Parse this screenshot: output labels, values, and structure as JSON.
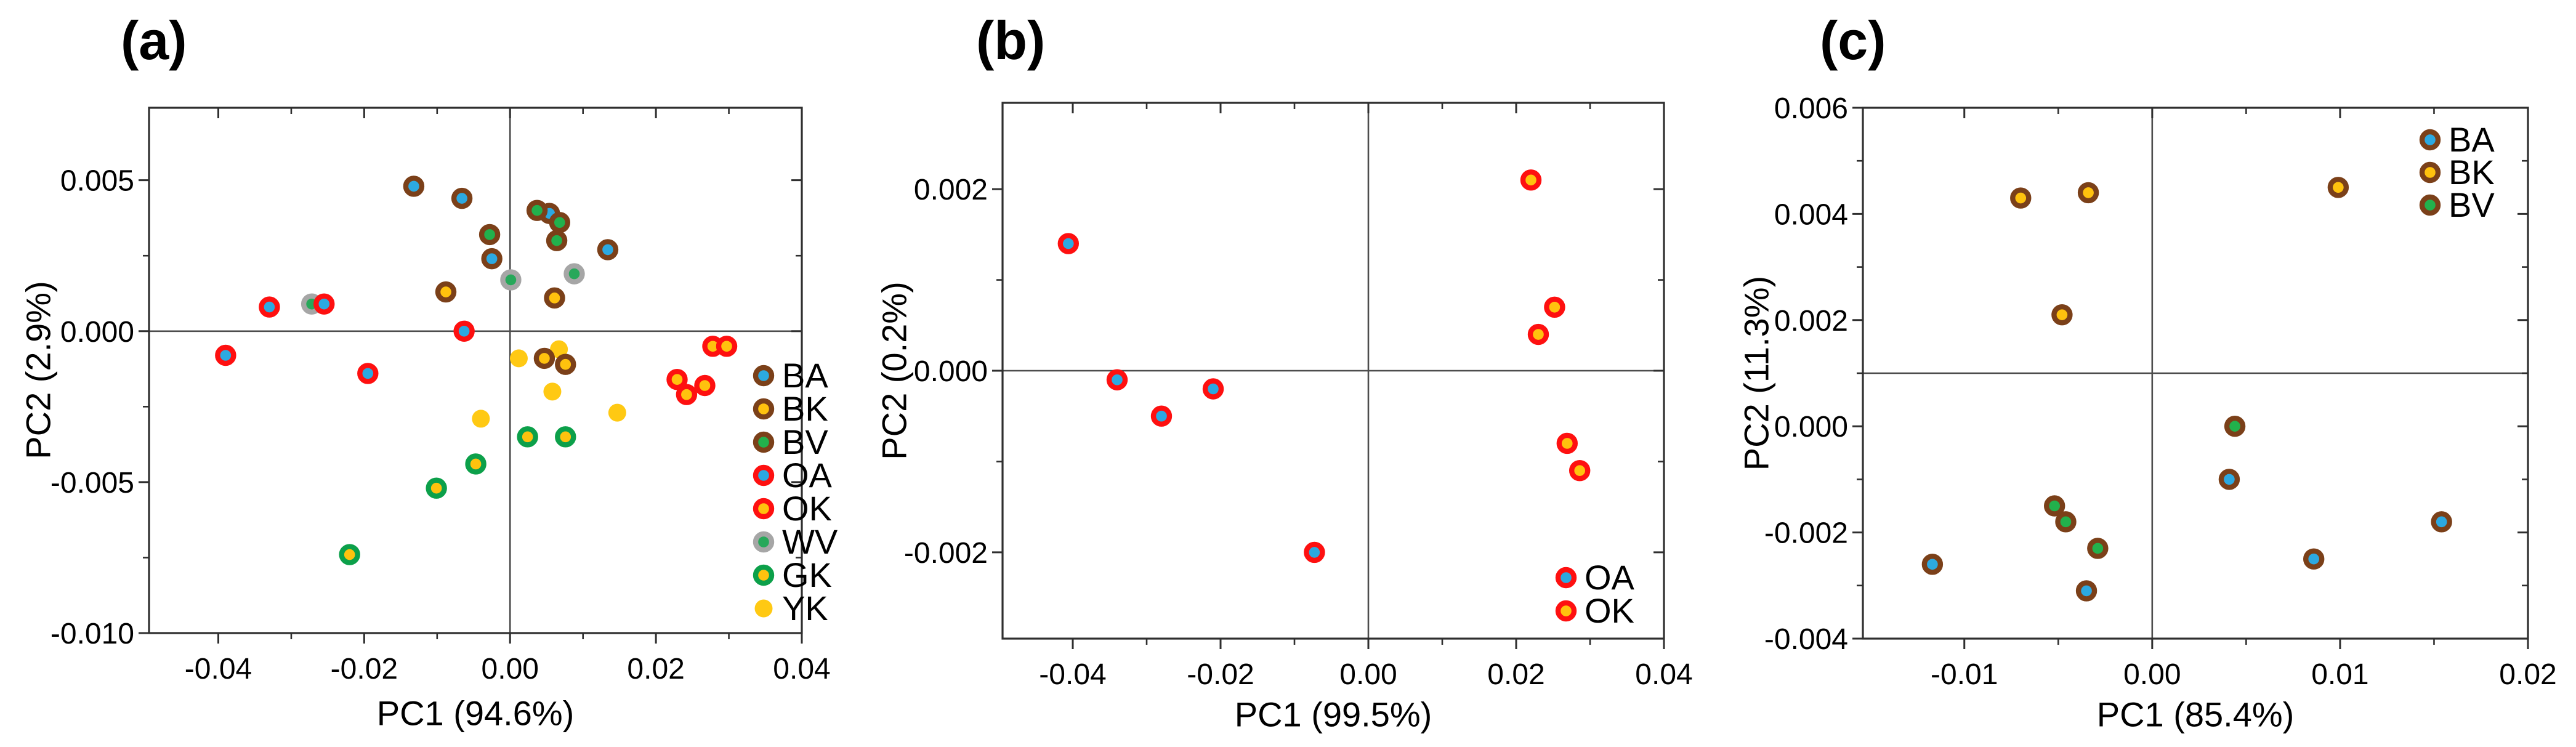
{
  "figure": {
    "background": "#ffffff",
    "text_color": "#000000",
    "axis_color": "#2f2f2f",
    "ref_line_color": "#4d4d4d"
  },
  "chart_data": [
    {
      "id": "a",
      "type": "scatter",
      "title": "(a)",
      "xlabel": "PC1 (94.6%)",
      "ylabel": "PC2 (2.9%)",
      "xlim": [
        -0.0495,
        0.04
      ],
      "ylim": [
        -0.01,
        0.0074
      ],
      "grid": false,
      "ref_lines": {
        "vertical_x": 0,
        "horizontal_y": 0
      },
      "xticks": {
        "major": [
          -0.04,
          -0.02,
          0.0,
          0.02,
          0.04
        ],
        "labels": [
          "-0.04",
          "-0.02",
          "0.00",
          "0.02",
          "0.04"
        ],
        "minor": [
          -0.03,
          -0.01,
          0.01,
          0.03
        ]
      },
      "yticks": {
        "major": [
          0.005,
          0.0,
          -0.005,
          -0.01
        ],
        "labels": [
          "0.005",
          "0.000",
          "-0.005",
          "-0.010"
        ],
        "minor": [
          0.0025,
          -0.0025,
          -0.0075
        ]
      },
      "legend": {
        "position": "right-edge",
        "entries": [
          "BA",
          "BK",
          "BV",
          "OA",
          "OK",
          "WV",
          "GK",
          "YK"
        ]
      },
      "series": [
        {
          "name": "BA",
          "fill": "#2CA9E1",
          "ring": "#7B4019",
          "points": [
            [
              -0.0132,
              0.0048
            ],
            [
              -0.0066,
              0.0044
            ],
            [
              0.0054,
              0.0039
            ],
            [
              -0.0025,
              0.0024
            ],
            [
              0.0134,
              0.0027
            ]
          ]
        },
        {
          "name": "BK",
          "fill": "#FFC20E",
          "ring": "#7B4019",
          "points": [
            [
              -0.0088,
              0.0013
            ],
            [
              0.0061,
              0.0011
            ],
            [
              0.0047,
              -0.0009
            ],
            [
              0.0076,
              -0.0011
            ]
          ]
        },
        {
          "name": "BV",
          "fill": "#22B14C",
          "ring": "#7B4019",
          "points": [
            [
              0.0037,
              0.004
            ],
            [
              -0.0028,
              0.0032
            ],
            [
              0.0068,
              0.0036
            ],
            [
              0.0064,
              0.003
            ]
          ]
        },
        {
          "name": "OA",
          "fill": "#2CA9E1",
          "ring": "#FE1010",
          "points": [
            [
              -0.039,
              -0.0008
            ],
            [
              -0.033,
              0.0008
            ],
            [
              -0.0255,
              0.0009
            ],
            [
              -0.0195,
              -0.0014
            ],
            [
              -0.0063,
              0.0
            ]
          ]
        },
        {
          "name": "OK",
          "fill": "#FFC20E",
          "ring": "#FE1010",
          "points": [
            [
              0.0278,
              -0.0005
            ],
            [
              0.0297,
              -0.0005
            ],
            [
              0.0229,
              -0.0016
            ],
            [
              0.0267,
              -0.0018
            ],
            [
              0.0242,
              -0.0021
            ]
          ]
        },
        {
          "name": "WV",
          "fill": "#27A85A",
          "ring": "#A6A6A6",
          "points": [
            [
              -0.0272,
              0.0009
            ],
            [
              0.0001,
              0.0017
            ],
            [
              0.0088,
              0.0019
            ]
          ]
        },
        {
          "name": "GK",
          "fill": "#FFC20E",
          "ring": "#0CA04A",
          "points": [
            [
              0.0024,
              -0.0035
            ],
            [
              0.0076,
              -0.0035
            ],
            [
              -0.0047,
              -0.0044
            ],
            [
              -0.0101,
              -0.0052
            ],
            [
              -0.022,
              -0.0074
            ]
          ]
        },
        {
          "name": "YK",
          "fill": "#FFC913",
          "ring": null,
          "points": [
            [
              0.0012,
              -0.0009
            ],
            [
              0.0067,
              -0.0006
            ],
            [
              0.0058,
              -0.002
            ],
            [
              0.0147,
              -0.0027
            ],
            [
              -0.004,
              -0.0029
            ]
          ]
        }
      ]
    },
    {
      "id": "b",
      "type": "scatter",
      "title": "(b)",
      "xlabel": "PC1 (99.5%)",
      "ylabel": "PC2 (0.2%)",
      "xlim": [
        -0.0495,
        0.04
      ],
      "ylim": [
        -0.00295,
        0.00295
      ],
      "grid": false,
      "ref_lines": {
        "vertical_x": 0,
        "horizontal_y": 0
      },
      "xticks": {
        "major": [
          -0.04,
          -0.02,
          0.0,
          0.02,
          0.04
        ],
        "labels": [
          "-0.04",
          "-0.02",
          "0.00",
          "0.02",
          "0.04"
        ],
        "minor": [
          -0.03,
          -0.01,
          0.01,
          0.03
        ]
      },
      "yticks": {
        "major": [
          0.002,
          0.0,
          -0.002
        ],
        "labels": [
          "0.002",
          "0.000",
          "-0.002"
        ],
        "minor": [
          0.001,
          -0.001
        ]
      },
      "legend": {
        "position": "bottom-right",
        "entries": [
          "OA",
          "OK"
        ]
      },
      "series": [
        {
          "name": "OA",
          "fill": "#2CA9E1",
          "ring": "#FE1010",
          "points": [
            [
              -0.0406,
              0.0014
            ],
            [
              -0.034,
              -0.0001
            ],
            [
              -0.028,
              -0.0005
            ],
            [
              -0.021,
              -0.0002
            ],
            [
              -0.0073,
              -0.002
            ]
          ]
        },
        {
          "name": "OK",
          "fill": "#FFC20E",
          "ring": "#FE1010",
          "points": [
            [
              0.022,
              0.0021
            ],
            [
              0.0252,
              0.0007
            ],
            [
              0.023,
              0.0004
            ],
            [
              0.0269,
              -0.0008
            ],
            [
              0.0286,
              -0.0011
            ]
          ]
        }
      ]
    },
    {
      "id": "c",
      "type": "scatter",
      "title": "(c)",
      "xlabel": "PC1 (85.4%)",
      "ylabel": "PC2 (11.3%)",
      "xlim": [
        -0.0154,
        0.02
      ],
      "ylim": [
        -0.004,
        0.006
      ],
      "grid": false,
      "ref_lines": {
        "vertical_x": 0,
        "horizontal_y": 0.001
      },
      "xticks": {
        "major": [
          -0.01,
          0.0,
          0.01,
          0.02
        ],
        "labels": [
          "-0.01",
          "0.00",
          "0.01",
          "0.02"
        ],
        "minor": [
          -0.005,
          0.005,
          0.015
        ]
      },
      "yticks": {
        "major": [
          0.006,
          0.004,
          0.002,
          0.0,
          -0.002,
          -0.004
        ],
        "labels": [
          "0.006",
          "0.004",
          "0.002",
          "0.000",
          "-0.002",
          "-0.004"
        ],
        "minor": [
          0.005,
          0.003,
          0.001,
          -0.001,
          -0.003
        ]
      },
      "legend": {
        "position": "top-right",
        "entries": [
          "BA",
          "BK",
          "BV"
        ]
      },
      "series": [
        {
          "name": "BA",
          "fill": "#2CA9E1",
          "ring": "#7B4019",
          "points": [
            [
              0.0041,
              -0.001
            ],
            [
              -0.0117,
              -0.0026
            ],
            [
              -0.0035,
              -0.0031
            ],
            [
              0.0154,
              -0.0018
            ],
            [
              0.0086,
              -0.0025
            ]
          ]
        },
        {
          "name": "BK",
          "fill": "#FFC20E",
          "ring": "#7B4019",
          "points": [
            [
              -0.007,
              0.0043
            ],
            [
              -0.0034,
              0.0044
            ],
            [
              -0.0048,
              0.0021
            ],
            [
              0.0099,
              0.0045
            ]
          ]
        },
        {
          "name": "BV",
          "fill": "#22B14C",
          "ring": "#7B4019",
          "points": [
            [
              0.0044,
              0.0
            ],
            [
              -0.0052,
              -0.0015
            ],
            [
              -0.0046,
              -0.0018
            ],
            [
              -0.0029,
              -0.0023
            ]
          ]
        }
      ]
    }
  ]
}
